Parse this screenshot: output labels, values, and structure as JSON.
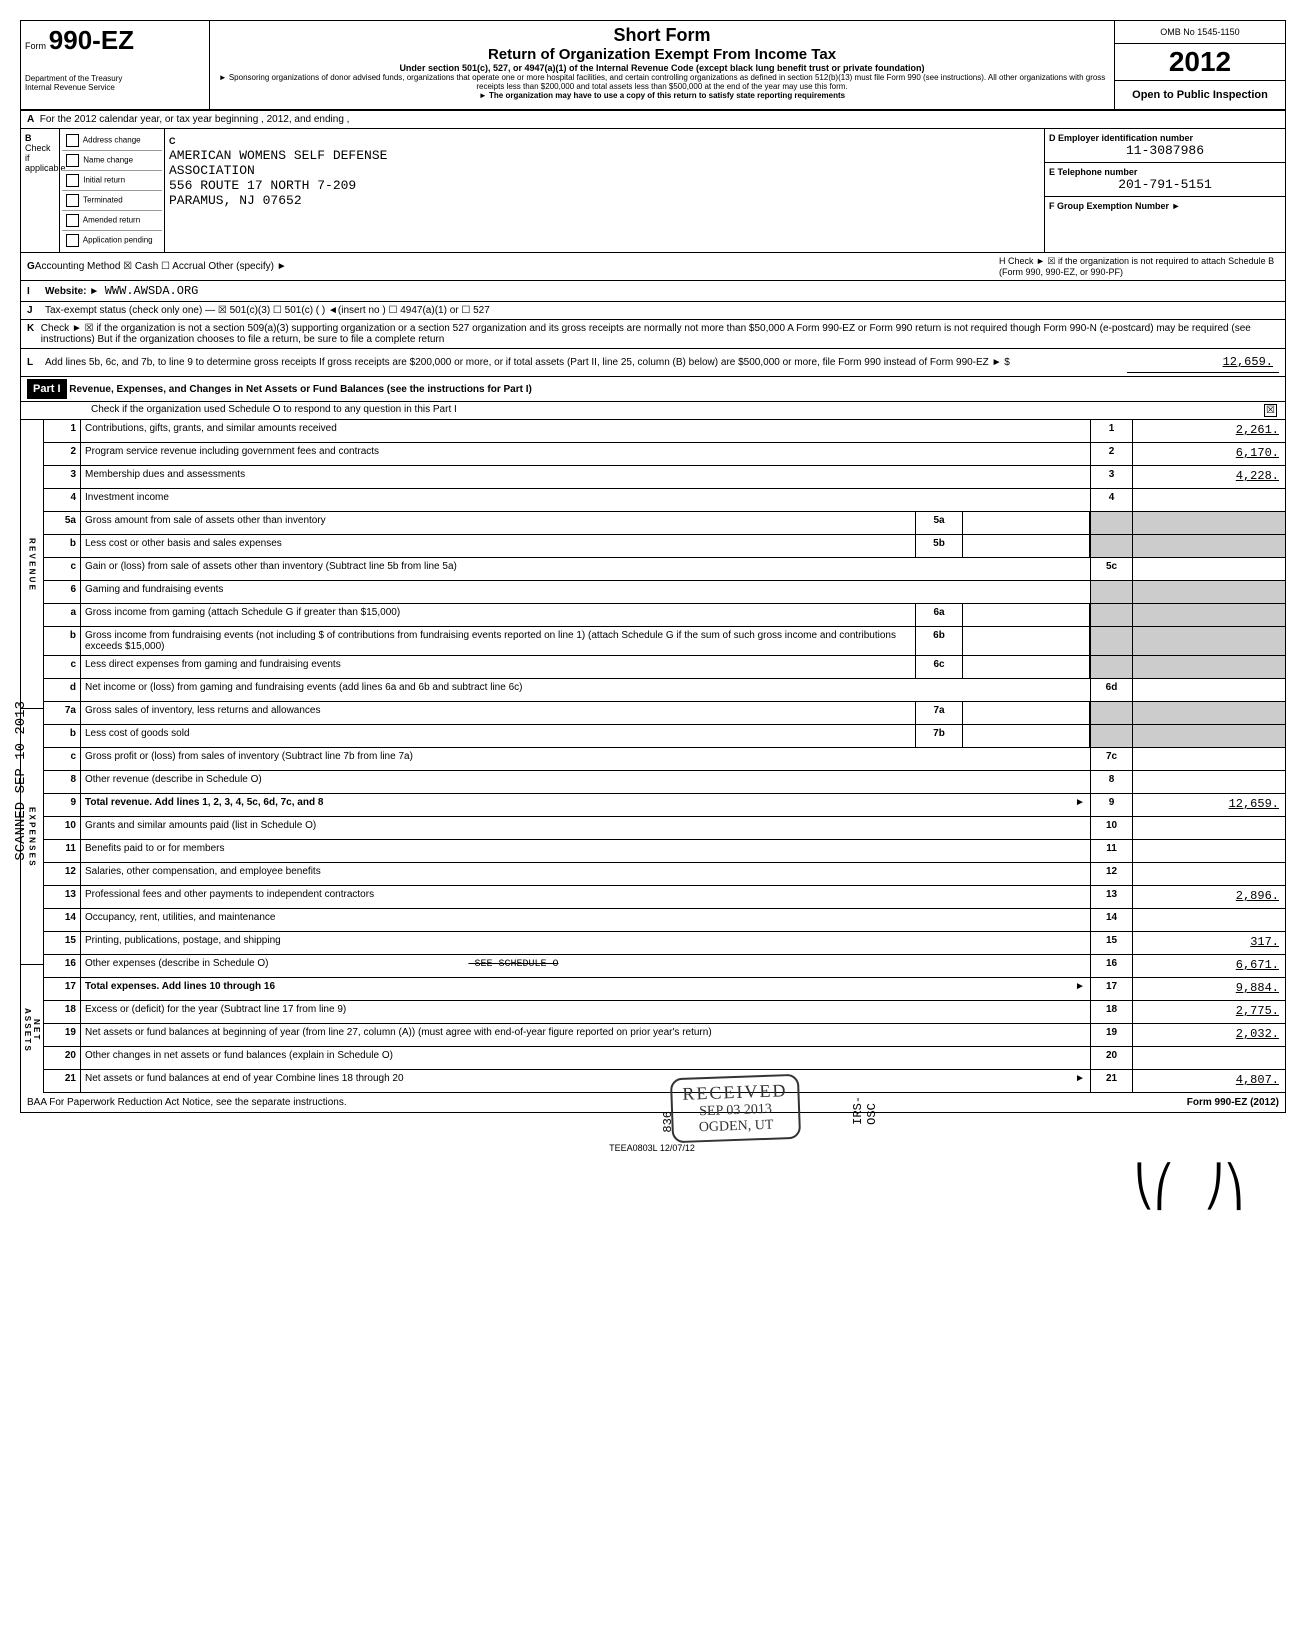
{
  "header": {
    "form_prefix": "Form",
    "form_number": "990-EZ",
    "dept1": "Department of the Treasury",
    "dept2": "Internal Revenue Service",
    "title1": "Short Form",
    "title2": "Return of Organization Exempt From Income Tax",
    "subtitle": "Under section 501(c), 527, or 4947(a)(1) of the Internal Revenue Code (except black lung benefit trust or private foundation)",
    "fine1": "► Sponsoring organizations of donor advised funds, organizations that operate one or more hospital facilities, and certain controlling organizations as defined in section 512(b)(13) must file Form 990 (see instructions). All other organizations with gross receipts less than $200,000 and total assets less than $500,000 at the end of the year may use this form.",
    "fine2": "► The organization may have to use a copy of this return to satisfy state reporting requirements",
    "omb": "OMB No 1545-1150",
    "year": "2012",
    "open": "Open to Public Inspection"
  },
  "line_a": "For the 2012 calendar year, or tax year beginning                           , 2012, and ending                            ,",
  "section_b": {
    "b_label": "Check if applicable",
    "checks": [
      "Address change",
      "Name change",
      "Initial return",
      "Terminated",
      "Amended return",
      "Application pending"
    ],
    "c_label": "C",
    "org_name": "AMERICAN WOMENS SELF DEFENSE",
    "org_name2": "ASSOCIATION",
    "addr1": "556 ROUTE 17 NORTH 7-209",
    "addr2": "PARAMUS, NJ 07652",
    "d_label": "D  Employer identification number",
    "ein": "11-3087986",
    "e_label": "E  Telephone number",
    "phone": "201-791-5151",
    "f_label": "F  Group Exemption Number  ►"
  },
  "line_g": "Accounting Method    ☒ Cash    ☐ Accrual   Other (specify) ►",
  "line_g_h": "H  Check ► ☒ if the organization is not required to attach Schedule B (Form 990, 990-EZ, or 990-PF)",
  "line_i": "Website: ►",
  "website": "WWW.AWSDA.ORG",
  "line_j": "Tax-exempt status (check only one) —   ☒ 501(c)(3)   ☐ 501(c) (    ) ◄(insert no )   ☐ 4947(a)(1) or   ☐ 527",
  "line_k": "Check ► ☒ if the organization is not a section 509(a)(3) supporting organization or a section 527 organization and its gross receipts are normally not more than $50,000  A Form 990-EZ or Form 990 return is not required though Form 990-N (e-postcard) may be required (see instructions)  But if the organization chooses to file a return, be sure to file a complete return",
  "line_l": "Add lines 5b, 6c, and 7b, to line 9 to determine gross receipts  If gross receipts are $200,000 or more, or if total assets (Part II, line 25, column (B) below) are $500,000 or more, file Form 990 instead of Form 990-EZ         ► $",
  "line_l_val": "12,659.",
  "part1": {
    "label": "Part I",
    "title": "Revenue, Expenses, and Changes in Net Assets or Fund Balances (see the instructions for Part I)",
    "check_line": "Check if the organization used Schedule O to respond to any question in this Part I",
    "check_mark": "☒"
  },
  "side_labels": {
    "revenue": "REVENUE",
    "expenses": "EXPENSES",
    "netassets": "NET ASSETS"
  },
  "rows": [
    {
      "n": "1",
      "desc": "Contributions, gifts, grants, and similar amounts received",
      "ln": "1",
      "amt": "2,261."
    },
    {
      "n": "2",
      "desc": "Program service revenue including government fees and contracts",
      "ln": "2",
      "amt": "6,170."
    },
    {
      "n": "3",
      "desc": "Membership dues and assessments",
      "ln": "3",
      "amt": "4,228."
    },
    {
      "n": "4",
      "desc": "Investment income",
      "ln": "4",
      "amt": ""
    },
    {
      "n": "5a",
      "desc": "Gross amount from sale of assets other than inventory",
      "mid": "5a",
      "midval": ""
    },
    {
      "n": "b",
      "desc": "Less  cost or other basis and sales expenses",
      "mid": "5b",
      "midval": ""
    },
    {
      "n": "c",
      "desc": "Gain or (loss) from sale of assets other than inventory (Subtract line 5b from line 5a)",
      "ln": "5c",
      "amt": ""
    },
    {
      "n": "6",
      "desc": "Gaming and fundraising events"
    },
    {
      "n": "a",
      "desc": "Gross income from gaming (attach Schedule G if greater than $15,000)",
      "mid": "6a",
      "midval": ""
    },
    {
      "n": "b",
      "desc": "Gross income from fundraising events (not including $                 of contributions from fundraising events reported on line 1) (attach Schedule G if the sum of such gross income and contributions exceeds $15,000)",
      "mid": "6b",
      "midval": ""
    },
    {
      "n": "c",
      "desc": "Less  direct expenses from gaming and fundraising events",
      "mid": "6c",
      "midval": ""
    },
    {
      "n": "d",
      "desc": "Net income or (loss) from gaming and fundraising events (add lines 6a and 6b and subtract line 6c)",
      "ln": "6d",
      "amt": ""
    },
    {
      "n": "7a",
      "desc": "Gross sales of inventory, less returns and allowances",
      "mid": "7a",
      "midval": ""
    },
    {
      "n": "b",
      "desc": "Less  cost of goods sold",
      "mid": "7b",
      "midval": ""
    },
    {
      "n": "c",
      "desc": "Gross profit or (loss) from sales of inventory (Subtract line 7b from line 7a)",
      "ln": "7c",
      "amt": ""
    },
    {
      "n": "8",
      "desc": "Other revenue (describe in Schedule O)",
      "ln": "8",
      "amt": ""
    },
    {
      "n": "9",
      "desc": "Total revenue. Add lines 1, 2, 3, 4, 5c, 6d, 7c, and 8",
      "ln": "9",
      "amt": "12,659.",
      "bold": true,
      "arrow": true
    },
    {
      "n": "10",
      "desc": "Grants and similar amounts paid (list in Schedule O)",
      "ln": "10",
      "amt": ""
    },
    {
      "n": "11",
      "desc": "Benefits paid to or for members",
      "ln": "11",
      "amt": ""
    },
    {
      "n": "12",
      "desc": "Salaries, other compensation, and employee benefits",
      "ln": "12",
      "amt": ""
    },
    {
      "n": "13",
      "desc": "Professional fees and other payments to independent contractors",
      "ln": "13",
      "amt": "2,896."
    },
    {
      "n": "14",
      "desc": "Occupancy, rent, utilities, and maintenance",
      "ln": "14",
      "amt": ""
    },
    {
      "n": "15",
      "desc": "Printing, publications, postage, and shipping",
      "ln": "15",
      "amt": "317."
    },
    {
      "n": "16",
      "desc": "Other expenses (describe in Schedule O)",
      "extra": "SEE SCHEDULE O",
      "ln": "16",
      "amt": "6,671."
    },
    {
      "n": "17",
      "desc": "Total expenses. Add lines 10 through 16",
      "ln": "17",
      "amt": "9,884.",
      "bold": true,
      "arrow": true
    },
    {
      "n": "18",
      "desc": "Excess or (deficit) for the year (Subtract line 17 from line 9)",
      "ln": "18",
      "amt": "2,775."
    },
    {
      "n": "19",
      "desc": "Net assets or fund balances at beginning of year (from line 27, column (A)) (must agree with end-of-year figure reported on prior year's return)",
      "ln": "19",
      "amt": "2,032."
    },
    {
      "n": "20",
      "desc": "Other changes in net assets or fund balances (explain in Schedule O)",
      "ln": "20",
      "amt": ""
    },
    {
      "n": "21",
      "desc": "Net assets or fund balances at end of year  Combine lines 18 through 20",
      "ln": "21",
      "amt": "4,807.",
      "arrow": true
    }
  ],
  "footer": {
    "left": "BAA  For Paperwork Reduction Act Notice, see the separate instructions.",
    "center": "TEEA0803L  12/07/12",
    "right": "Form 990-EZ (2012)"
  },
  "stamps": {
    "scanned": "SCANNED SEP 10 2013",
    "received": "RECEIVED",
    "received_date": "SEP 03 2013",
    "received_loc": "OGDEN, UT",
    "irs_osc_836": "836",
    "irs_osc": "IRS-OSC"
  }
}
